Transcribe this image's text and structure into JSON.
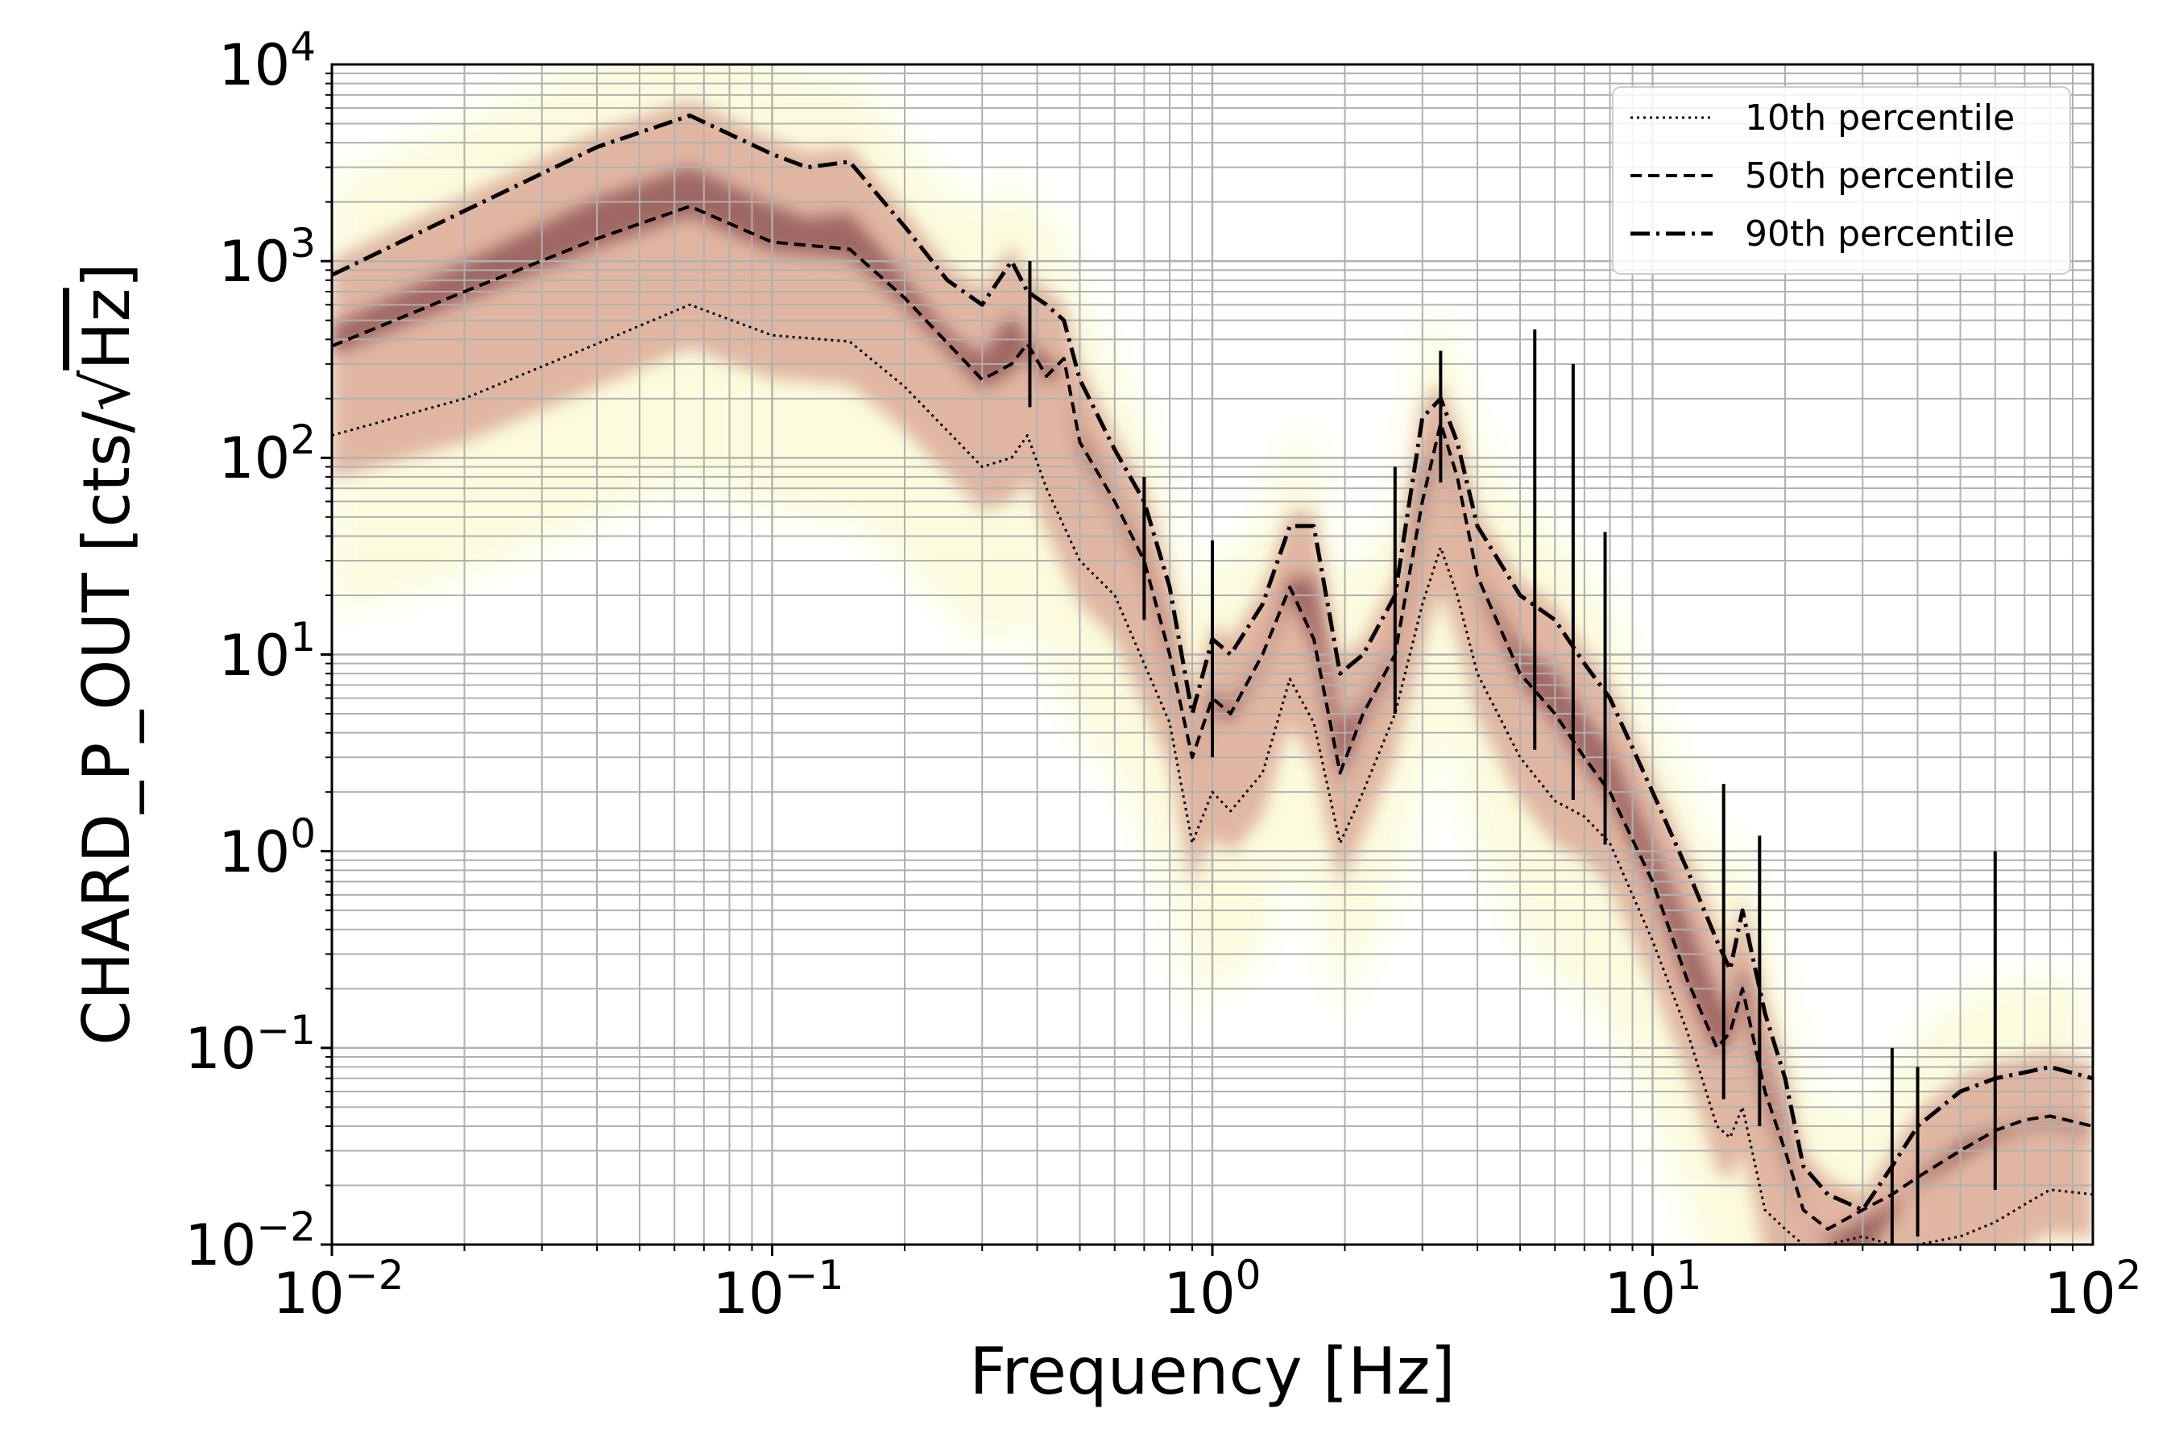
{
  "chart_data": {
    "type": "line",
    "xlabel": "Frequency [Hz]",
    "ylabel": "CHARD_P_OUT [cts/√Hz]",
    "ylabel_prefix": "CHARD_P_OUT [cts/",
    "ylabel_radical": "√",
    "ylabel_radicand": "Hz",
    "ylabel_suffix": "]",
    "x_scale": "log",
    "y_scale": "log",
    "xlim": [
      0.01,
      100
    ],
    "ylim": [
      0.01,
      10000
    ],
    "grid": true,
    "legend_position": "top-right",
    "background_histogram": "spectrogram density, light yellow to dark maroon",
    "x_ticks": [
      {
        "base": "10",
        "exp": "−2",
        "value": 0.01
      },
      {
        "base": "10",
        "exp": "−1",
        "value": 0.1
      },
      {
        "base": "10",
        "exp": "0",
        "value": 1
      },
      {
        "base": "10",
        "exp": "1",
        "value": 10
      },
      {
        "base": "10",
        "exp": "2",
        "value": 100
      }
    ],
    "y_ticks": [
      {
        "base": "10",
        "exp": "−2",
        "value": 0.01
      },
      {
        "base": "10",
        "exp": "−1",
        "value": 0.1
      },
      {
        "base": "10",
        "exp": "0",
        "value": 1
      },
      {
        "base": "10",
        "exp": "1",
        "value": 10
      },
      {
        "base": "10",
        "exp": "2",
        "value": 100
      },
      {
        "base": "10",
        "exp": "3",
        "value": 1000
      },
      {
        "base": "10",
        "exp": "4",
        "value": 10000
      }
    ],
    "colors": {
      "light": "#fcfbdc",
      "mid": "#dcaa98",
      "dark": "#6b2830",
      "line": "#000000",
      "grid": "#b0b0b0"
    },
    "series": [
      {
        "name": "10th percentile",
        "style": "dotted",
        "x": [
          0.01,
          0.02,
          0.04,
          0.065,
          0.1,
          0.15,
          0.2,
          0.3,
          0.35,
          0.38,
          0.42,
          0.5,
          0.6,
          0.7,
          0.8,
          0.9,
          1.0,
          1.1,
          1.3,
          1.5,
          1.7,
          1.95,
          2.2,
          2.6,
          3.0,
          3.3,
          3.6,
          4.0,
          5.0,
          6.0,
          7.0,
          8.0,
          10,
          12,
          14,
          15,
          16,
          18,
          20,
          22,
          25,
          30,
          35,
          40,
          50,
          60,
          70,
          80,
          100
        ],
        "y": [
          130,
          200,
          380,
          600,
          420,
          390,
          230,
          90,
          100,
          130,
          70,
          30,
          20,
          9,
          4.5,
          1.1,
          2.0,
          1.6,
          2.5,
          7.5,
          4.5,
          1.1,
          2.0,
          5.0,
          18,
          35,
          20,
          8,
          3,
          1.8,
          1.5,
          1.1,
          0.35,
          0.12,
          0.04,
          0.035,
          0.05,
          0.015,
          0.012,
          0.01,
          0.01,
          0.011,
          0.01,
          0.01,
          0.011,
          0.013,
          0.016,
          0.019,
          0.018
        ]
      },
      {
        "name": "50th percentile",
        "style": "dashed",
        "x": [
          0.01,
          0.02,
          0.04,
          0.065,
          0.1,
          0.15,
          0.2,
          0.3,
          0.35,
          0.38,
          0.42,
          0.46,
          0.5,
          0.6,
          0.7,
          0.8,
          0.9,
          1.0,
          1.1,
          1.3,
          1.5,
          1.7,
          1.95,
          2.2,
          2.6,
          3.0,
          3.3,
          3.6,
          4.0,
          5.0,
          6.0,
          7.0,
          8.0,
          10,
          12,
          14,
          15,
          16,
          18,
          20,
          22,
          25,
          30,
          35,
          40,
          50,
          60,
          70,
          80,
          100
        ],
        "y": [
          370,
          700,
          1300,
          1900,
          1250,
          1150,
          650,
          250,
          300,
          380,
          260,
          320,
          120,
          60,
          30,
          10,
          3.0,
          6.0,
          5.0,
          10,
          22,
          12,
          2.5,
          5.0,
          10,
          60,
          150,
          80,
          25,
          8,
          5,
          3,
          2,
          0.7,
          0.22,
          0.1,
          0.12,
          0.2,
          0.06,
          0.03,
          0.015,
          0.012,
          0.015,
          0.018,
          0.022,
          0.03,
          0.038,
          0.043,
          0.045,
          0.04
        ]
      },
      {
        "name": "90th percentile",
        "style": "dashdot",
        "x": [
          0.01,
          0.02,
          0.04,
          0.065,
          0.1,
          0.12,
          0.15,
          0.2,
          0.25,
          0.3,
          0.35,
          0.38,
          0.42,
          0.46,
          0.5,
          0.6,
          0.7,
          0.8,
          0.9,
          1.0,
          1.1,
          1.3,
          1.5,
          1.7,
          1.95,
          2.2,
          2.6,
          3.0,
          3.3,
          3.6,
          4.0,
          5.0,
          6.0,
          7.0,
          8.0,
          10,
          12,
          14,
          15,
          16,
          18,
          20,
          22,
          25,
          30,
          35,
          40,
          50,
          60,
          70,
          80,
          100
        ],
        "y": [
          850,
          1800,
          3800,
          5500,
          3500,
          3000,
          3200,
          1500,
          800,
          600,
          1000,
          700,
          600,
          500,
          250,
          110,
          60,
          22,
          5,
          12,
          10,
          18,
          45,
          45,
          8,
          10,
          20,
          160,
          200,
          120,
          45,
          20,
          15,
          9,
          6,
          2,
          0.8,
          0.35,
          0.25,
          0.5,
          0.15,
          0.07,
          0.025,
          0.018,
          0.015,
          0.025,
          0.04,
          0.06,
          0.07,
          0.075,
          0.08,
          0.07
        ]
      }
    ],
    "spikes": [
      {
        "x": 0.385,
        "y": 1000
      },
      {
        "x": 0.7,
        "y": 80
      },
      {
        "x": 1.0,
        "y": 38
      },
      {
        "x": 2.6,
        "y": 90
      },
      {
        "x": 3.3,
        "y": 350
      },
      {
        "x": 5.4,
        "y": 450
      },
      {
        "x": 6.6,
        "y": 300
      },
      {
        "x": 7.8,
        "y": 42
      },
      {
        "x": 14.5,
        "y": 2.2
      },
      {
        "x": 17.5,
        "y": 1.2
      },
      {
        "x": 35,
        "y": 0.1
      },
      {
        "x": 40,
        "y": 0.08
      },
      {
        "x": 60,
        "y": 1.0
      }
    ]
  }
}
